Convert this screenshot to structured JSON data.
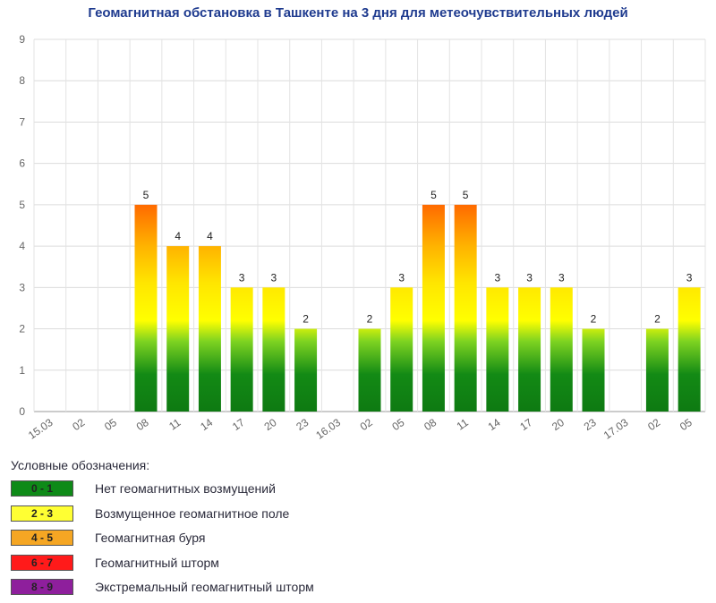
{
  "chart_data": {
    "type": "bar",
    "title": "Геомагнитная обстановка в Ташкенте на 3 дня для метеочувствительных людей",
    "xlabel": "",
    "ylabel": "",
    "ylim": [
      0,
      9
    ],
    "yticks": [
      "0",
      "1",
      "2",
      "3",
      "4",
      "5",
      "6",
      "7",
      "8",
      "9"
    ],
    "categories": [
      "15.03",
      "02",
      "05",
      "08",
      "11",
      "14",
      "17",
      "20",
      "23",
      "16.03",
      "02",
      "05",
      "08",
      "11",
      "14",
      "17",
      "20",
      "23",
      "17.03",
      "02",
      "05"
    ],
    "values": [
      null,
      null,
      null,
      5,
      4,
      4,
      3,
      3,
      2,
      null,
      2,
      3,
      5,
      5,
      3,
      3,
      3,
      2,
      null,
      2,
      3
    ],
    "grid": true,
    "colors": {
      "green": "#0e7a12",
      "yellow": "#ffff00",
      "orange": "#f39c12",
      "red": "#ff0000",
      "purple": "#8b1a9b"
    }
  },
  "legend": {
    "title": "Условные обозначения:",
    "items": [
      {
        "range": "0 - 1",
        "label": "Нет геомагнитных возмущений",
        "color": "#0e8a18"
      },
      {
        "range": "2 - 3",
        "label": "Возмущенное геомагнитное поле",
        "color": "#ffff33"
      },
      {
        "range": "4 - 5",
        "label": "Геомагнитная буря",
        "color": "#f5a623"
      },
      {
        "range": "6 - 7",
        "label": "Геомагнитный шторм",
        "color": "#ff1a1a"
      },
      {
        "range": "8 - 9",
        "label": "Экстремальный геомагнитный шторм",
        "color": "#8e1f9c"
      }
    ]
  }
}
